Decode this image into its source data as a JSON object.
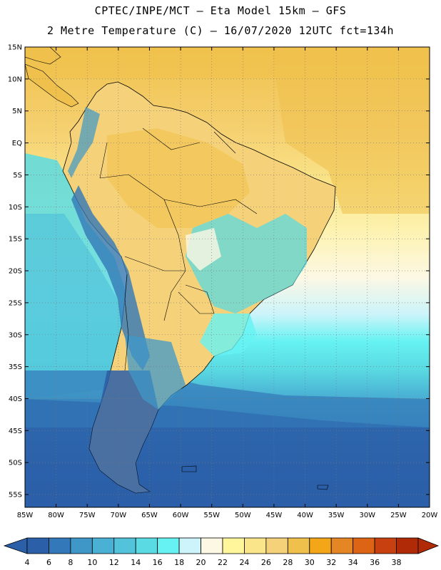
{
  "header": {
    "line1": "CPTEC/INPE/MCT –  Eta Model 15km – GFS",
    "line2": "2 Metre Temperature (C) – 16/07/2020 12UTC fct=134h"
  },
  "map": {
    "lat_labels": [
      "15N",
      "10N",
      "5N",
      "EQ",
      "5S",
      "10S",
      "15S",
      "20S",
      "25S",
      "30S",
      "35S",
      "40S",
      "45S",
      "50S",
      "55S"
    ],
    "lon_labels": [
      "85W",
      "80W",
      "75W",
      "70W",
      "65W",
      "60W",
      "55W",
      "50W",
      "45W",
      "40W",
      "35W",
      "30W",
      "25W",
      "20W"
    ],
    "lat_range": [
      15,
      -57
    ],
    "lon_range": [
      -85,
      -20
    ]
  },
  "colorbar": {
    "labels": [
      "4",
      "6",
      "8",
      "10",
      "12",
      "14",
      "16",
      "18",
      "20",
      "22",
      "24",
      "26",
      "28",
      "30",
      "32",
      "34",
      "36",
      "38"
    ],
    "colors": [
      "#2b5fa8",
      "#3378b8",
      "#3f97c8",
      "#4ab0d4",
      "#52c3da",
      "#5adae2",
      "#66f2f2",
      "#ccf4fa",
      "#fdf8e4",
      "#fff59a",
      "#fae58a",
      "#f5d27a",
      "#efc04c",
      "#f2a618",
      "#e48624",
      "#dc6414",
      "#c84010",
      "#b02a08"
    ]
  }
}
